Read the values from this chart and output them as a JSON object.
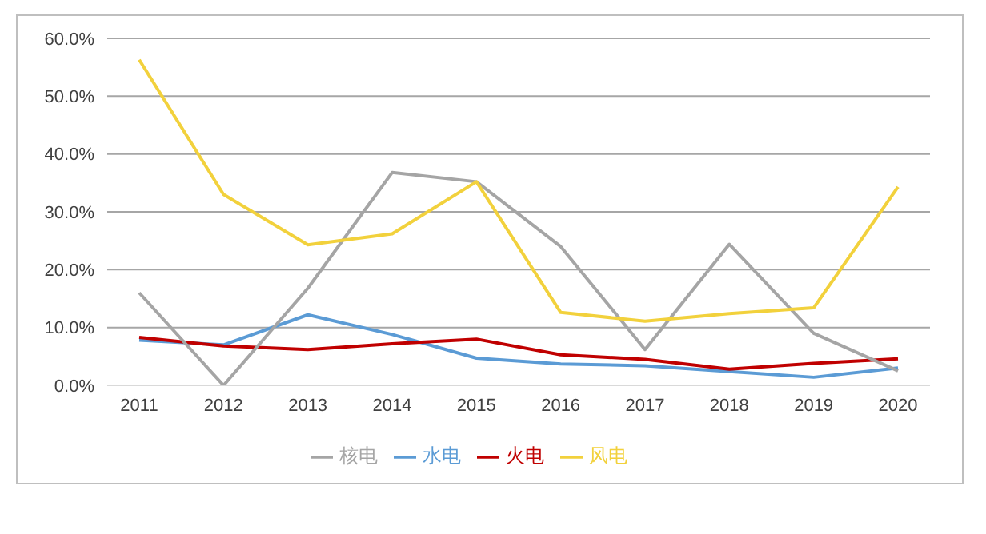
{
  "chart_data": {
    "type": "line",
    "categories": [
      "2011",
      "2012",
      "2013",
      "2014",
      "2015",
      "2016",
      "2017",
      "2018",
      "2019",
      "2020"
    ],
    "series": [
      {
        "name": "水电",
        "color": "#5b9bd5",
        "values": [
          7.8,
          7.0,
          12.2,
          8.8,
          4.7,
          3.7,
          3.4,
          2.4,
          1.4,
          3.0
        ]
      },
      {
        "name": "火电",
        "color": "#c00000",
        "values": [
          8.3,
          6.8,
          6.2,
          7.2,
          8.0,
          5.3,
          4.5,
          2.8,
          3.8,
          4.6
        ]
      },
      {
        "name": "核电",
        "color": "#a5a5a5",
        "values": [
          16.0,
          0.0,
          16.8,
          36.8,
          35.2,
          24.0,
          6.2,
          24.4,
          9.0,
          2.5
        ]
      },
      {
        "name": "风电",
        "color": "#f2d13c",
        "values": [
          56.3,
          33.0,
          24.3,
          26.2,
          35.2,
          12.6,
          11.1,
          12.4,
          13.4,
          34.3
        ]
      }
    ],
    "ylim": [
      0,
      60
    ],
    "yticks": [
      {
        "value": 0,
        "label": "0.0%"
      },
      {
        "value": 10,
        "label": "10.0%"
      },
      {
        "value": 20,
        "label": "20.0%"
      },
      {
        "value": 30,
        "label": "30.0%"
      },
      {
        "value": 40,
        "label": "40.0%"
      },
      {
        "value": 50,
        "label": "50.0%"
      },
      {
        "value": 60,
        "label": "60.0%"
      }
    ],
    "grid": "y",
    "legend": "bottom",
    "marker": "none",
    "line_style": "solid"
  }
}
